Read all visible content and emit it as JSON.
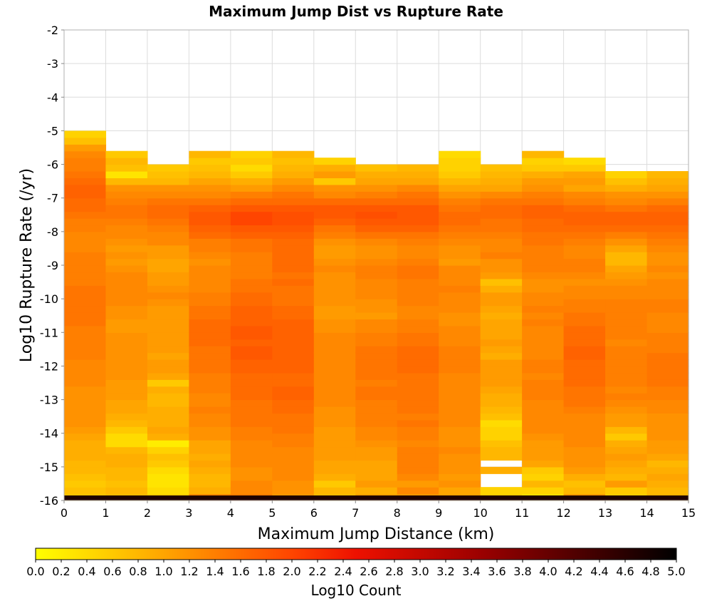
{
  "chart_data": {
    "type": "heatmap",
    "title": "Maximum Jump Dist vs Rupture Rate",
    "xlabel": "Maximum Jump Distance (km)",
    "ylabel": "Log10 Rupture Rate (/yr)",
    "xlim": [
      0,
      15
    ],
    "ylim": [
      -16,
      -2
    ],
    "x_ticks": [
      "0",
      "1",
      "2",
      "3",
      "4",
      "5",
      "6",
      "7",
      "8",
      "9",
      "10",
      "11",
      "12",
      "13",
      "14",
      "15"
    ],
    "y_ticks": [
      "-2",
      "-3",
      "-4",
      "-5",
      "-6",
      "-7",
      "-8",
      "-9",
      "-10",
      "-11",
      "-12",
      "-13",
      "-14",
      "-15",
      "-16"
    ],
    "x_bin_width": 1,
    "y_bin_width": 0.2,
    "y_bin_start": -16,
    "columns": [
      {
        "x": 0,
        "y_max": -3.0,
        "values": [
          0.6,
          0.7,
          0.6,
          0.7,
          0.8,
          0.8,
          0.9,
          0.9,
          0.9,
          1.0,
          1.1,
          1.2,
          1.2,
          1.2,
          1.2,
          1.2,
          1.2,
          1.3,
          1.3,
          1.3,
          1.3,
          1.4,
          1.4,
          1.4,
          1.4,
          1.4,
          1.5,
          1.5,
          1.5,
          1.5,
          1.5,
          1.5,
          1.4,
          1.4,
          1.4,
          1.4,
          1.4,
          1.3,
          1.3,
          1.3,
          1.4,
          1.4,
          1.5,
          1.6,
          1.6,
          1.7,
          1.7,
          1.6,
          1.5,
          1.4,
          1.4,
          1.3,
          1.1,
          0.7,
          0.5
        ]
      },
      {
        "x": 1,
        "y_max": -3.8,
        "values": [
          0.7,
          0.8,
          0.7,
          0.8,
          0.8,
          0.9,
          0.9,
          0.8,
          0.4,
          0.4,
          0.6,
          0.8,
          0.9,
          1.0,
          1.0,
          1.1,
          1.1,
          1.1,
          1.2,
          1.2,
          1.2,
          1.2,
          1.2,
          1.2,
          1.2,
          1.1,
          1.1,
          1.2,
          1.2,
          1.3,
          1.3,
          1.3,
          1.3,
          1.3,
          1.2,
          1.1,
          1.2,
          1.1,
          1.2,
          1.3,
          1.3,
          1.4,
          1.5,
          1.5,
          1.4,
          1.3,
          1.2,
          0.8,
          0.3,
          0.7,
          0.8,
          0.6
        ]
      },
      {
        "x": 2,
        "y_max": -4.2,
        "values": [
          0.5,
          0.4,
          0.3,
          0.3,
          0.4,
          0.6,
          0.7,
          0.5,
          0.2,
          0.9,
          1.0,
          0.9,
          0.9,
          0.9,
          0.8,
          0.8,
          0.9,
          0.6,
          1.0,
          1.1,
          1.1,
          1.0,
          1.1,
          1.1,
          1.1,
          1.1,
          1.1,
          1.1,
          1.1,
          1.2,
          1.3,
          1.2,
          1.1,
          1.1,
          1.0,
          1.0,
          1.1,
          1.1,
          1.3,
          1.3,
          1.4,
          1.5,
          1.6,
          1.6,
          1.5,
          1.3,
          1.2,
          0.8,
          0.7,
          0.6
        ]
      },
      {
        "x": 3,
        "y_max": -3.8,
        "values": [
          1.3,
          0.9,
          0.8,
          0.8,
          0.9,
          1.0,
          0.9,
          1.0,
          1.0,
          1.2,
          1.2,
          1.3,
          1.3,
          1.4,
          1.3,
          1.3,
          1.4,
          1.4,
          1.4,
          1.5,
          1.5,
          1.5,
          1.5,
          1.6,
          1.6,
          1.6,
          1.6,
          1.5,
          1.5,
          1.4,
          1.4,
          1.3,
          1.3,
          1.3,
          1.3,
          1.2,
          1.3,
          1.4,
          1.4,
          1.6,
          1.7,
          1.8,
          1.8,
          1.7,
          1.5,
          1.3,
          1.2,
          1.0,
          0.8,
          0.7,
          0.6,
          0.8
        ]
      },
      {
        "x": 4,
        "y_max": -3.8,
        "values": [
          1.4,
          1.3,
          1.3,
          1.2,
          1.2,
          1.3,
          1.3,
          1.3,
          1.3,
          1.4,
          1.4,
          1.5,
          1.5,
          1.5,
          1.5,
          1.6,
          1.6,
          1.6,
          1.6,
          1.7,
          1.7,
          1.8,
          1.8,
          1.7,
          1.8,
          1.8,
          1.7,
          1.7,
          1.7,
          1.6,
          1.6,
          1.5,
          1.5,
          1.4,
          1.4,
          1.4,
          1.4,
          1.5,
          1.5,
          1.7,
          1.8,
          2.0,
          2.0,
          1.8,
          1.6,
          1.4,
          1.1,
          0.9,
          0.6,
          0.4,
          0.6,
          0.5
        ]
      },
      {
        "x": 5,
        "y_max": -3.8,
        "values": [
          1.1,
          1.2,
          1.2,
          1.3,
          1.3,
          1.3,
          1.3,
          1.3,
          1.4,
          1.4,
          1.5,
          1.5,
          1.5,
          1.6,
          1.6,
          1.7,
          1.7,
          1.6,
          1.6,
          1.7,
          1.7,
          1.7,
          1.7,
          1.7,
          1.7,
          1.7,
          1.7,
          1.6,
          1.6,
          1.5,
          1.5,
          1.5,
          1.6,
          1.5,
          1.6,
          1.6,
          1.6,
          1.6,
          1.6,
          1.7,
          1.8,
          1.9,
          1.9,
          1.8,
          1.6,
          1.5,
          1.3,
          1.1,
          0.9,
          0.8,
          0.7,
          0.8
        ]
      },
      {
        "x": 6,
        "y_max": -3.8,
        "values": [
          0.7,
          0.8,
          0.6,
          0.9,
          1.0,
          1.0,
          1.1,
          1.1,
          1.1,
          1.1,
          1.1,
          1.2,
          1.2,
          1.2,
          1.3,
          1.3,
          1.3,
          1.3,
          1.3,
          1.3,
          1.3,
          1.3,
          1.3,
          1.3,
          1.3,
          1.2,
          1.2,
          1.1,
          1.1,
          1.2,
          1.2,
          1.2,
          1.2,
          1.2,
          1.3,
          1.2,
          1.1,
          1.1,
          1.2,
          1.4,
          1.5,
          1.7,
          1.8,
          1.8,
          1.6,
          1.3,
          1.2,
          0.6,
          1.1,
          0.9,
          0.5
        ]
      },
      {
        "x": 7,
        "y_max": -4.2,
        "values": [
          1.0,
          0.9,
          1.1,
          1.0,
          1.0,
          1.0,
          1.1,
          1.1,
          1.2,
          1.3,
          1.3,
          1.4,
          1.4,
          1.4,
          1.4,
          1.5,
          1.5,
          1.4,
          1.5,
          1.5,
          1.5,
          1.5,
          1.5,
          1.4,
          1.4,
          1.3,
          1.3,
          1.1,
          1.2,
          1.2,
          1.3,
          1.3,
          1.3,
          1.4,
          1.4,
          1.3,
          1.2,
          1.2,
          1.3,
          1.5,
          1.7,
          1.8,
          1.9,
          1.8,
          1.6,
          1.4,
          1.2,
          1.0,
          0.9,
          0.7
        ]
      },
      {
        "x": 8,
        "y_max": -4.2,
        "values": [
          1.1,
          1.3,
          1.1,
          1.3,
          1.4,
          1.4,
          1.4,
          1.4,
          1.3,
          1.4,
          1.4,
          1.5,
          1.4,
          1.5,
          1.5,
          1.5,
          1.5,
          1.5,
          1.5,
          1.6,
          1.6,
          1.6,
          1.6,
          1.5,
          1.5,
          1.4,
          1.4,
          1.3,
          1.3,
          1.4,
          1.4,
          1.4,
          1.4,
          1.5,
          1.5,
          1.4,
          1.3,
          1.3,
          1.4,
          1.5,
          1.7,
          1.8,
          1.8,
          1.8,
          1.6,
          1.5,
          1.3,
          1.0,
          0.9,
          0.8
        ]
      },
      {
        "x": 9,
        "y_max": -3.8,
        "values": [
          1.0,
          1.0,
          1.2,
          1.1,
          1.2,
          1.2,
          1.2,
          1.3,
          1.2,
          1.2,
          1.2,
          1.3,
          1.3,
          1.3,
          1.3,
          1.3,
          1.3,
          1.3,
          1.3,
          1.4,
          1.4,
          1.4,
          1.4,
          1.3,
          1.3,
          1.3,
          1.2,
          1.2,
          1.3,
          1.3,
          1.3,
          1.4,
          1.3,
          1.3,
          1.3,
          1.1,
          1.2,
          1.2,
          1.3,
          1.4,
          1.5,
          1.6,
          1.6,
          1.5,
          1.4,
          1.2,
          1.0,
          0.8,
          0.6,
          0.5,
          0.5,
          0.4
        ]
      },
      {
        "x": 10,
        "y_max": -4.2,
        "values": [
          0.5,
          0.5,
          null,
          null,
          0.9,
          null,
          0.8,
          0.8,
          0.7,
          0.5,
          0.5,
          0.4,
          0.7,
          0.8,
          0.9,
          0.9,
          1.0,
          1.1,
          1.1,
          1.1,
          1.1,
          0.9,
          1.0,
          1.1,
          1.0,
          1.0,
          1.0,
          0.9,
          1.0,
          1.1,
          1.1,
          0.9,
          0.7,
          1.1,
          1.2,
          1.2,
          1.4,
          1.3,
          1.3,
          1.4,
          1.5,
          1.5,
          1.6,
          1.6,
          1.5,
          1.3,
          1.0,
          0.9,
          0.8,
          0.7
        ]
      },
      {
        "x": 11,
        "y_max": -3.8,
        "values": [
          0.3,
          0.5,
          0.8,
          0.5,
          0.6,
          1.0,
          1.1,
          1.1,
          1.1,
          1.2,
          1.3,
          1.3,
          1.3,
          1.3,
          1.3,
          1.4,
          1.4,
          1.4,
          1.3,
          1.4,
          1.4,
          1.3,
          1.3,
          1.3,
          1.3,
          1.3,
          1.4,
          1.3,
          1.4,
          1.3,
          1.3,
          1.2,
          1.2,
          1.3,
          1.4,
          1.4,
          1.4,
          1.4,
          1.5,
          1.5,
          1.6,
          1.6,
          1.7,
          1.7,
          1.5,
          1.4,
          1.2,
          1.1,
          0.9,
          0.6,
          0.5,
          0.8
        ]
      },
      {
        "x": 12,
        "y_max": -3.8,
        "values": [
          1.1,
          0.8,
          0.7,
          0.9,
          1.1,
          1.2,
          1.2,
          1.2,
          1.3,
          1.3,
          1.3,
          1.3,
          1.3,
          1.4,
          1.5,
          1.5,
          1.5,
          1.6,
          1.6,
          1.6,
          1.6,
          1.7,
          1.7,
          1.6,
          1.6,
          1.6,
          1.5,
          1.5,
          1.4,
          1.4,
          1.3,
          1.3,
          1.2,
          1.3,
          1.4,
          1.4,
          1.3,
          1.3,
          1.4,
          1.5,
          1.6,
          1.7,
          1.7,
          1.6,
          1.4,
          1.3,
          1.0,
          1.1,
          1.0,
          0.6,
          0.4
        ]
      },
      {
        "x": 13,
        "y_max": -4.2,
        "values": [
          0.5,
          0.6,
          1.1,
          0.8,
          0.9,
          1.0,
          1.1,
          1.0,
          0.9,
          0.6,
          0.8,
          1.1,
          1.1,
          1.2,
          1.3,
          1.4,
          1.3,
          1.4,
          1.4,
          1.4,
          1.4,
          1.4,
          1.4,
          1.3,
          1.4,
          1.4,
          1.4,
          1.4,
          1.4,
          1.4,
          1.3,
          1.3,
          1.2,
          1.1,
          1.0,
          0.8,
          0.8,
          1.0,
          1.2,
          1.4,
          1.6,
          1.7,
          1.7,
          1.5,
          1.3,
          1.2,
          0.9,
          0.7,
          0.5
        ]
      },
      {
        "x": 14,
        "y_max": -4.4,
        "values": [
          0.8,
          0.8,
          0.9,
          1.0,
          0.9,
          0.8,
          1.0,
          1.1,
          1.1,
          1.2,
          1.2,
          1.2,
          1.2,
          1.3,
          1.3,
          1.4,
          1.4,
          1.5,
          1.5,
          1.5,
          1.5,
          1.5,
          1.4,
          1.4,
          1.4,
          1.3,
          1.3,
          1.3,
          1.4,
          1.4,
          1.3,
          1.3,
          1.3,
          1.2,
          1.3,
          1.2,
          1.2,
          1.3,
          1.4,
          1.5,
          1.6,
          1.7,
          1.7,
          1.6,
          1.4,
          1.2,
          1.0,
          0.9,
          0.8
        ]
      }
    ],
    "bottom_band": {
      "y_range": [
        -16,
        -15.85
      ],
      "value": 4.7
    },
    "colorbar": {
      "title": "Log10 Count",
      "range": [
        0,
        5
      ],
      "ticks": [
        "0.0",
        "0.2",
        "0.4",
        "0.6",
        "0.8",
        "1.0",
        "1.2",
        "1.4",
        "1.6",
        "1.8",
        "2.0",
        "2.2",
        "2.4",
        "2.6",
        "2.8",
        "3.0",
        "3.2",
        "3.4",
        "3.6",
        "3.8",
        "4.0",
        "4.2",
        "4.4",
        "4.6",
        "4.8",
        "5.0"
      ],
      "colors": [
        "#ffff00",
        "#ffa500",
        "#ff4500",
        "#ee1100",
        "#990000",
        "#000000"
      ],
      "color_stops": [
        0,
        1,
        2,
        2.5,
        3.5,
        5
      ]
    },
    "grid": true,
    "legend": "bottom"
  }
}
